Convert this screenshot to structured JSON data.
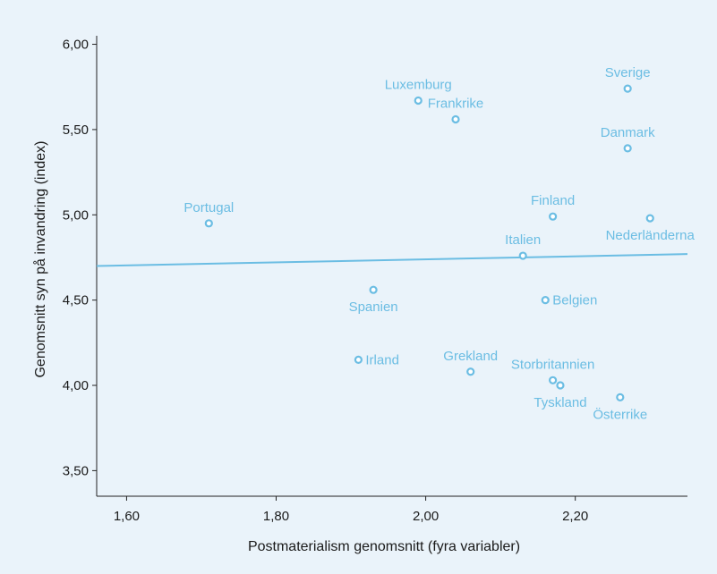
{
  "chart_data": {
    "type": "scatter",
    "title": "",
    "xlabel": "Postmaterialism genomsnitt (fyra variabler)",
    "ylabel": "Genomsnitt syn på invandring (index)",
    "xlim": [
      1.56,
      2.35
    ],
    "ylim": [
      3.35,
      6.05
    ],
    "x_ticks": [
      {
        "value": 1.6,
        "label": "1,60"
      },
      {
        "value": 1.8,
        "label": "1,80"
      },
      {
        "value": 2.0,
        "label": "2,00"
      },
      {
        "value": 2.2,
        "label": "2,20"
      }
    ],
    "y_ticks": [
      {
        "value": 3.5,
        "label": "3,50"
      },
      {
        "value": 4.0,
        "label": "4,00"
      },
      {
        "value": 4.5,
        "label": "4,50"
      },
      {
        "value": 5.0,
        "label": "5,00"
      },
      {
        "value": 5.5,
        "label": "5,50"
      },
      {
        "value": 6.0,
        "label": "6,00"
      }
    ],
    "grid": false,
    "points": [
      {
        "label": "Portugal",
        "x": 1.71,
        "y": 4.95,
        "label_pos": "above"
      },
      {
        "label": "Luxemburg",
        "x": 1.99,
        "y": 5.67,
        "label_pos": "above"
      },
      {
        "label": "Frankrike",
        "x": 2.04,
        "y": 5.56,
        "label_pos": "above"
      },
      {
        "label": "Sverige",
        "x": 2.27,
        "y": 5.74,
        "label_pos": "above"
      },
      {
        "label": "Danmark",
        "x": 2.27,
        "y": 5.39,
        "label_pos": "above"
      },
      {
        "label": "Finland",
        "x": 2.17,
        "y": 4.99,
        "label_pos": "above"
      },
      {
        "label": "Nederländerna",
        "x": 2.3,
        "y": 4.98,
        "label_pos": "below"
      },
      {
        "label": "Italien",
        "x": 2.13,
        "y": 4.76,
        "label_pos": "above"
      },
      {
        "label": "Spanien",
        "x": 1.93,
        "y": 4.56,
        "label_pos": "below"
      },
      {
        "label": "Belgien",
        "x": 2.16,
        "y": 4.5,
        "label_pos": "right"
      },
      {
        "label": "Irland",
        "x": 1.91,
        "y": 4.15,
        "label_pos": "right"
      },
      {
        "label": "Grekland",
        "x": 2.06,
        "y": 4.08,
        "label_pos": "above"
      },
      {
        "label": "Storbritannien",
        "x": 2.17,
        "y": 4.03,
        "label_pos": "above"
      },
      {
        "label": "Tyskland",
        "x": 2.18,
        "y": 4.0,
        "label_pos": "below"
      },
      {
        "label": "Österrike",
        "x": 2.26,
        "y": 3.93,
        "label_pos": "below"
      }
    ],
    "trend_line": {
      "x": [
        1.56,
        2.35
      ],
      "y": [
        4.7,
        4.77
      ]
    },
    "colors": {
      "points": "#6bbde3",
      "trend_line": "#6bbde3",
      "axes": "#222222",
      "background": "#eaf3fa"
    }
  }
}
